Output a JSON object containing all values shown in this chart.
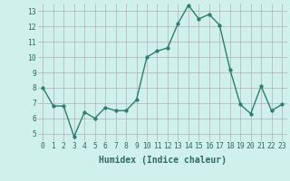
{
  "x": [
    0,
    1,
    2,
    3,
    4,
    5,
    6,
    7,
    8,
    9,
    10,
    11,
    12,
    13,
    14,
    15,
    16,
    17,
    18,
    19,
    20,
    21,
    22,
    23
  ],
  "y": [
    8.0,
    6.8,
    6.8,
    4.8,
    6.4,
    6.0,
    6.7,
    6.5,
    6.5,
    7.2,
    10.0,
    10.4,
    10.6,
    12.2,
    13.4,
    12.5,
    12.8,
    12.1,
    9.2,
    6.9,
    6.3,
    8.1,
    6.5,
    6.9
  ],
  "line_color": "#2e7d6e",
  "marker_color": "#2e7d6e",
  "bg_color": "#d0f0ec",
  "grid_color": "#b0b0b0",
  "xlabel": "Humidex (Indice chaleur)",
  "xlim": [
    -0.5,
    23.5
  ],
  "ylim": [
    4.5,
    13.5
  ],
  "yticks": [
    5,
    6,
    7,
    8,
    9,
    10,
    11,
    12,
    13
  ],
  "xticks": [
    0,
    1,
    2,
    3,
    4,
    5,
    6,
    7,
    8,
    9,
    10,
    11,
    12,
    13,
    14,
    15,
    16,
    17,
    18,
    19,
    20,
    21,
    22,
    23
  ],
  "xtick_labels": [
    "0",
    "1",
    "2",
    "3",
    "4",
    "5",
    "6",
    "7",
    "8",
    "9",
    "10",
    "11",
    "12",
    "13",
    "14",
    "15",
    "16",
    "17",
    "18",
    "19",
    "20",
    "21",
    "22",
    "23"
  ],
  "font_color": "#2e6b5e",
  "marker_size": 2.5,
  "line_width": 1.0,
  "tick_fontsize": 5.8,
  "xlabel_fontsize": 7.0
}
